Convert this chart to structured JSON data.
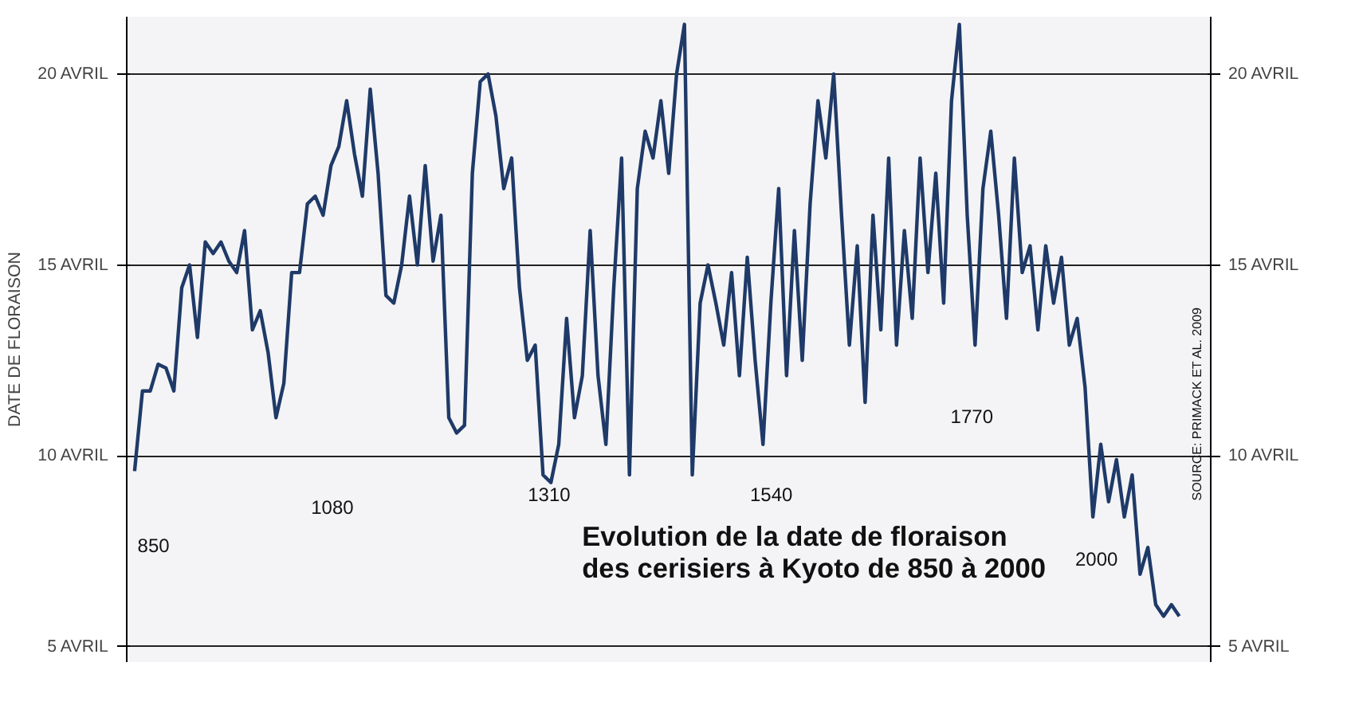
{
  "chart_data": {
    "type": "line",
    "title": "Evolution de la date de floraison\ndes cerisiers à Kyoto de 850 à 2000",
    "ylabel": "DATE DE FLORAISON",
    "categories": [
      null,
      null,
      null,
      null,
      null,
      null,
      null,
      null,
      null,
      null,
      null,
      null,
      null,
      null,
      null,
      null,
      null,
      null,
      null,
      null,
      null,
      null,
      null,
      null,
      null,
      null,
      null,
      null,
      null,
      null,
      null,
      null,
      null,
      null,
      null,
      null,
      null,
      null,
      null,
      null,
      null,
      null,
      null,
      null,
      null,
      null,
      null,
      null,
      null,
      null,
      null,
      null,
      null,
      null,
      null,
      null,
      null,
      null,
      null,
      null,
      null,
      null,
      null,
      null,
      null,
      null,
      null,
      null,
      null,
      null,
      null,
      null,
      null,
      null,
      null,
      null,
      null,
      null,
      null,
      null,
      null,
      null,
      null,
      null,
      null,
      null,
      null,
      null,
      null,
      null,
      null,
      null,
      null,
      null,
      null,
      null,
      null,
      null,
      null,
      null,
      null,
      null,
      null,
      null,
      null,
      null,
      null,
      null,
      null,
      null,
      null,
      null,
      null,
      null,
      null,
      null,
      null,
      null,
      null,
      null,
      null,
      null,
      null,
      null,
      null,
      null,
      null,
      null,
      null,
      null,
      null,
      null,
      null,
      null
    ],
    "series": [
      {
        "color": "#1f3a68",
        "values": [
          9.6,
          11.7,
          11.7,
          12.4,
          12.3,
          11.7,
          14.4,
          15,
          13.1,
          15.6,
          15.3,
          15.6,
          15.1,
          14.8,
          15.9,
          13.3,
          13.8,
          12.7,
          11.0,
          11.9,
          14.8,
          14.8,
          16.6,
          16.8,
          16.3,
          17.6,
          18.1,
          19.3,
          17.9,
          16.8,
          19.6,
          17.4,
          14.2,
          14.0,
          15.0,
          16.8,
          15.0,
          17.6,
          15.1,
          16.3,
          11.0,
          10.6,
          10.8,
          17.4,
          19.8,
          20.0,
          18.9,
          17.0,
          17.8,
          14.4,
          12.5,
          12.9,
          9.5,
          9.3,
          10.3,
          13.6,
          11.0,
          12.1,
          15.9,
          12.1,
          10.3,
          14.4,
          17.8,
          9.5,
          17.0,
          18.5,
          17.8,
          19.3,
          17.4,
          20.0,
          21.3,
          9.5,
          14.0,
          15.0,
          14.0,
          12.9,
          14.8,
          12.1,
          15.2,
          12.5,
          10.3,
          14.0,
          17.0,
          12.1,
          15.9,
          12.5,
          16.6,
          19.3,
          17.8,
          20.0,
          16.3,
          12.9,
          15.5,
          11.4,
          16.3,
          13.3,
          17.8,
          12.9,
          15.9,
          13.6,
          17.8,
          14.8,
          17.4,
          14.0,
          19.3,
          21.3,
          16.3,
          12.9,
          17.0,
          18.5,
          16.3,
          13.6,
          17.8,
          14.8,
          15.5,
          13.3,
          15.5,
          14.0,
          15.2,
          12.9,
          13.6,
          11.8,
          8.4,
          10.3,
          8.8,
          9.9,
          8.4,
          9.5,
          6.9,
          7.6,
          6.1,
          5.8,
          6.1,
          5.8
        ]
      }
    ],
    "ylim": [
      4.6,
      21.5
    ],
    "yticks": [
      {
        "value": 5,
        "label": "5 AVRIL"
      },
      {
        "value": 10,
        "label": "10 AVRIL"
      },
      {
        "value": 15,
        "label": "15 AVRIL"
      },
      {
        "value": 20,
        "label": "20 AVRIL"
      }
    ],
    "tick_labels": "y",
    "grid": "y",
    "marker": "none",
    "line_style": "solid",
    "annotations": [
      "850",
      "1080",
      "1310",
      "1540",
      "1770",
      "2000",
      "SOURCE: PRIMACK ET AL. 2009"
    ]
  }
}
